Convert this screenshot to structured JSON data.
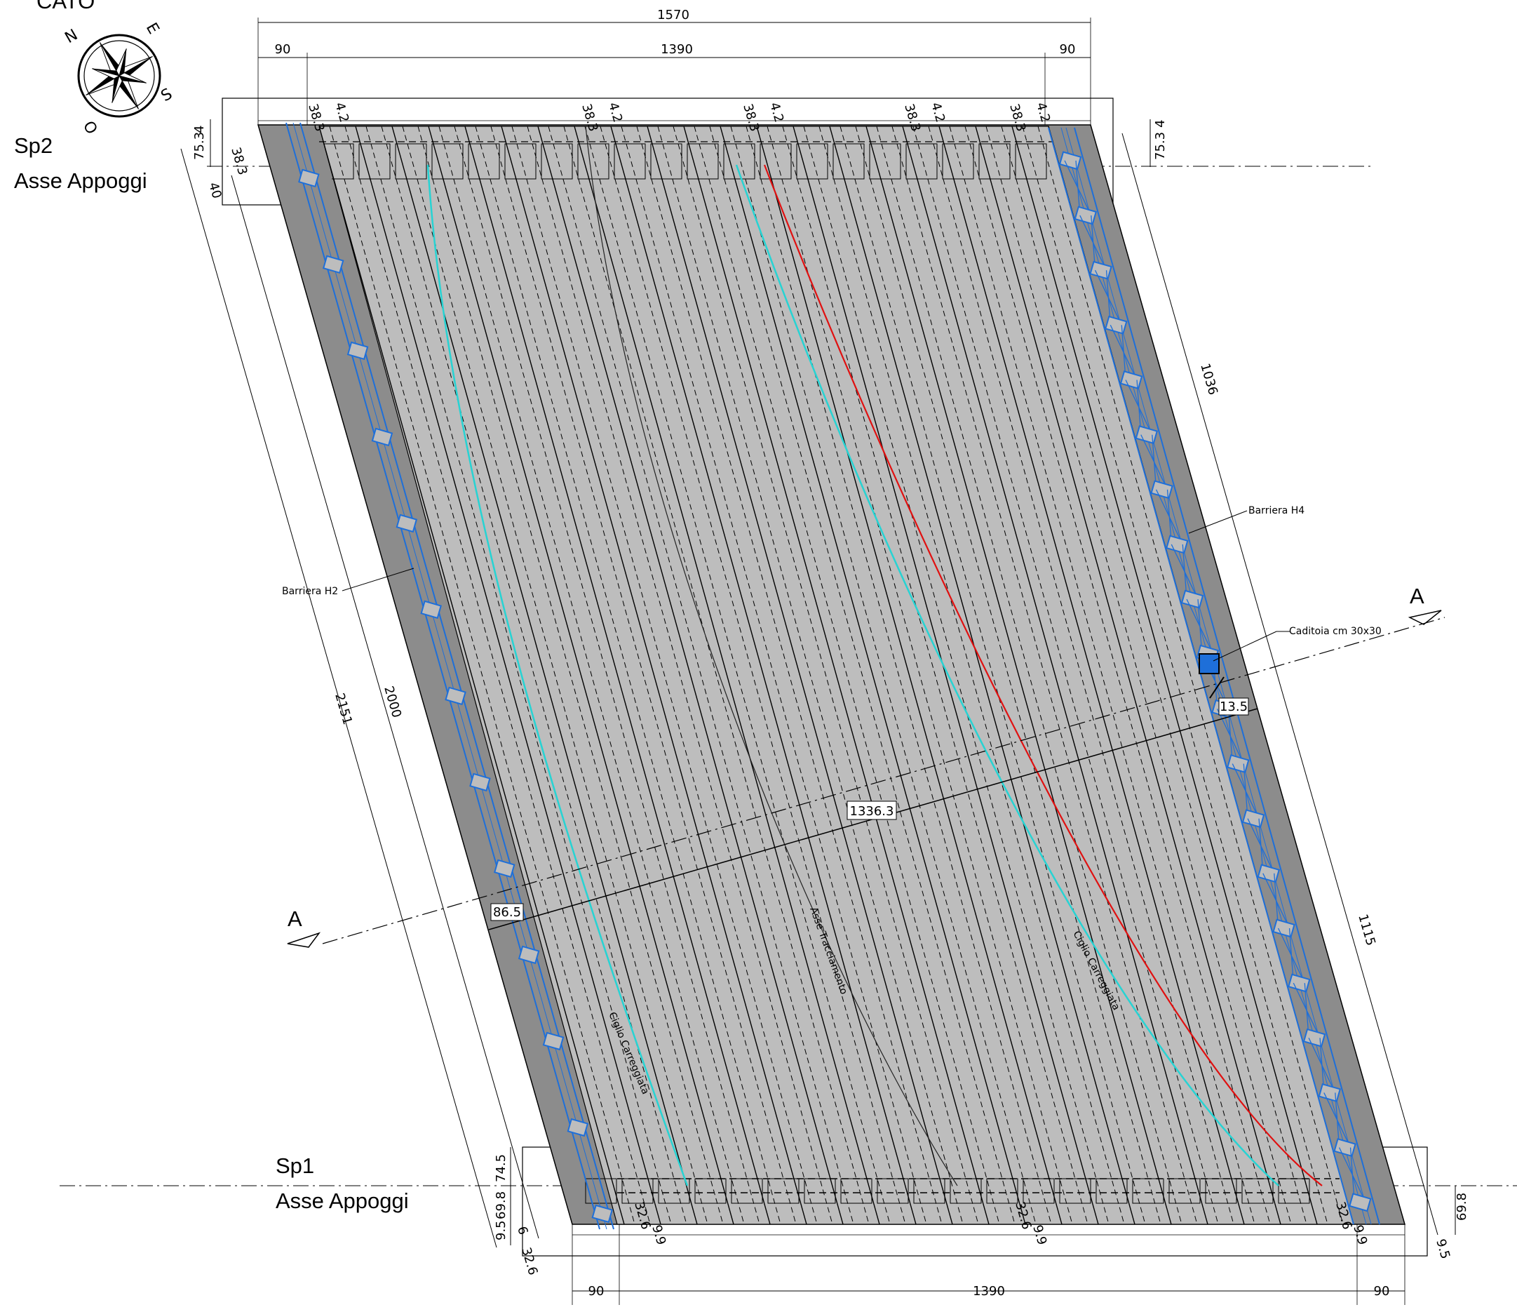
{
  "title": "CATO",
  "compass": {
    "north": "N",
    "east": "E",
    "south": "S",
    "west": "O"
  },
  "supports": {
    "top": {
      "name": "Sp2",
      "axis": "Asse Appoggi"
    },
    "bottom": {
      "name": "Sp1",
      "axis": "Asse Appoggi"
    }
  },
  "dimensions": {
    "top_total": "1570",
    "top_left": "90",
    "top_mid": "1390",
    "top_right": "90",
    "bottom_left": "90",
    "bottom_mid": "1390",
    "bottom_right": "90",
    "left_outer": "2151",
    "left_inner": "2000",
    "right_upper": "1036",
    "right_lower": "1115",
    "diagonal": "1336.3",
    "skew_left": "86.5",
    "skew_right": "13.5",
    "top_small_a": "38.3",
    "top_small_b": "4.2",
    "top_left_side": [
      "4",
      "75.3",
      "38.3",
      "40"
    ],
    "top_right_side": [
      "4",
      "75.3"
    ],
    "bottom_small_a": "32.6",
    "bottom_small_b": "9.9",
    "bottom_left_side": [
      "74.5",
      "69.8",
      "9.5",
      "32.6",
      "6"
    ],
    "bottom_right_side": [
      "69.8",
      "9.5"
    ]
  },
  "labels": {
    "barrier_left": "Barriera H2",
    "barrier_right": "Barriera H4",
    "drain": "Caditoia cm 30x30",
    "section_left": "A",
    "section_right": "A",
    "curb_left": "Ciglio Carreggiata",
    "curb_right": "Ciglio Carreggiata",
    "axis": "Asse Tracciamento"
  },
  "colors": {
    "deck": "#bdbdbd",
    "edge": "#8c8c8c",
    "barrier": "#1e6fd9",
    "curb": "#27d3d3",
    "alignment": "#e01010",
    "line": "#000000"
  }
}
